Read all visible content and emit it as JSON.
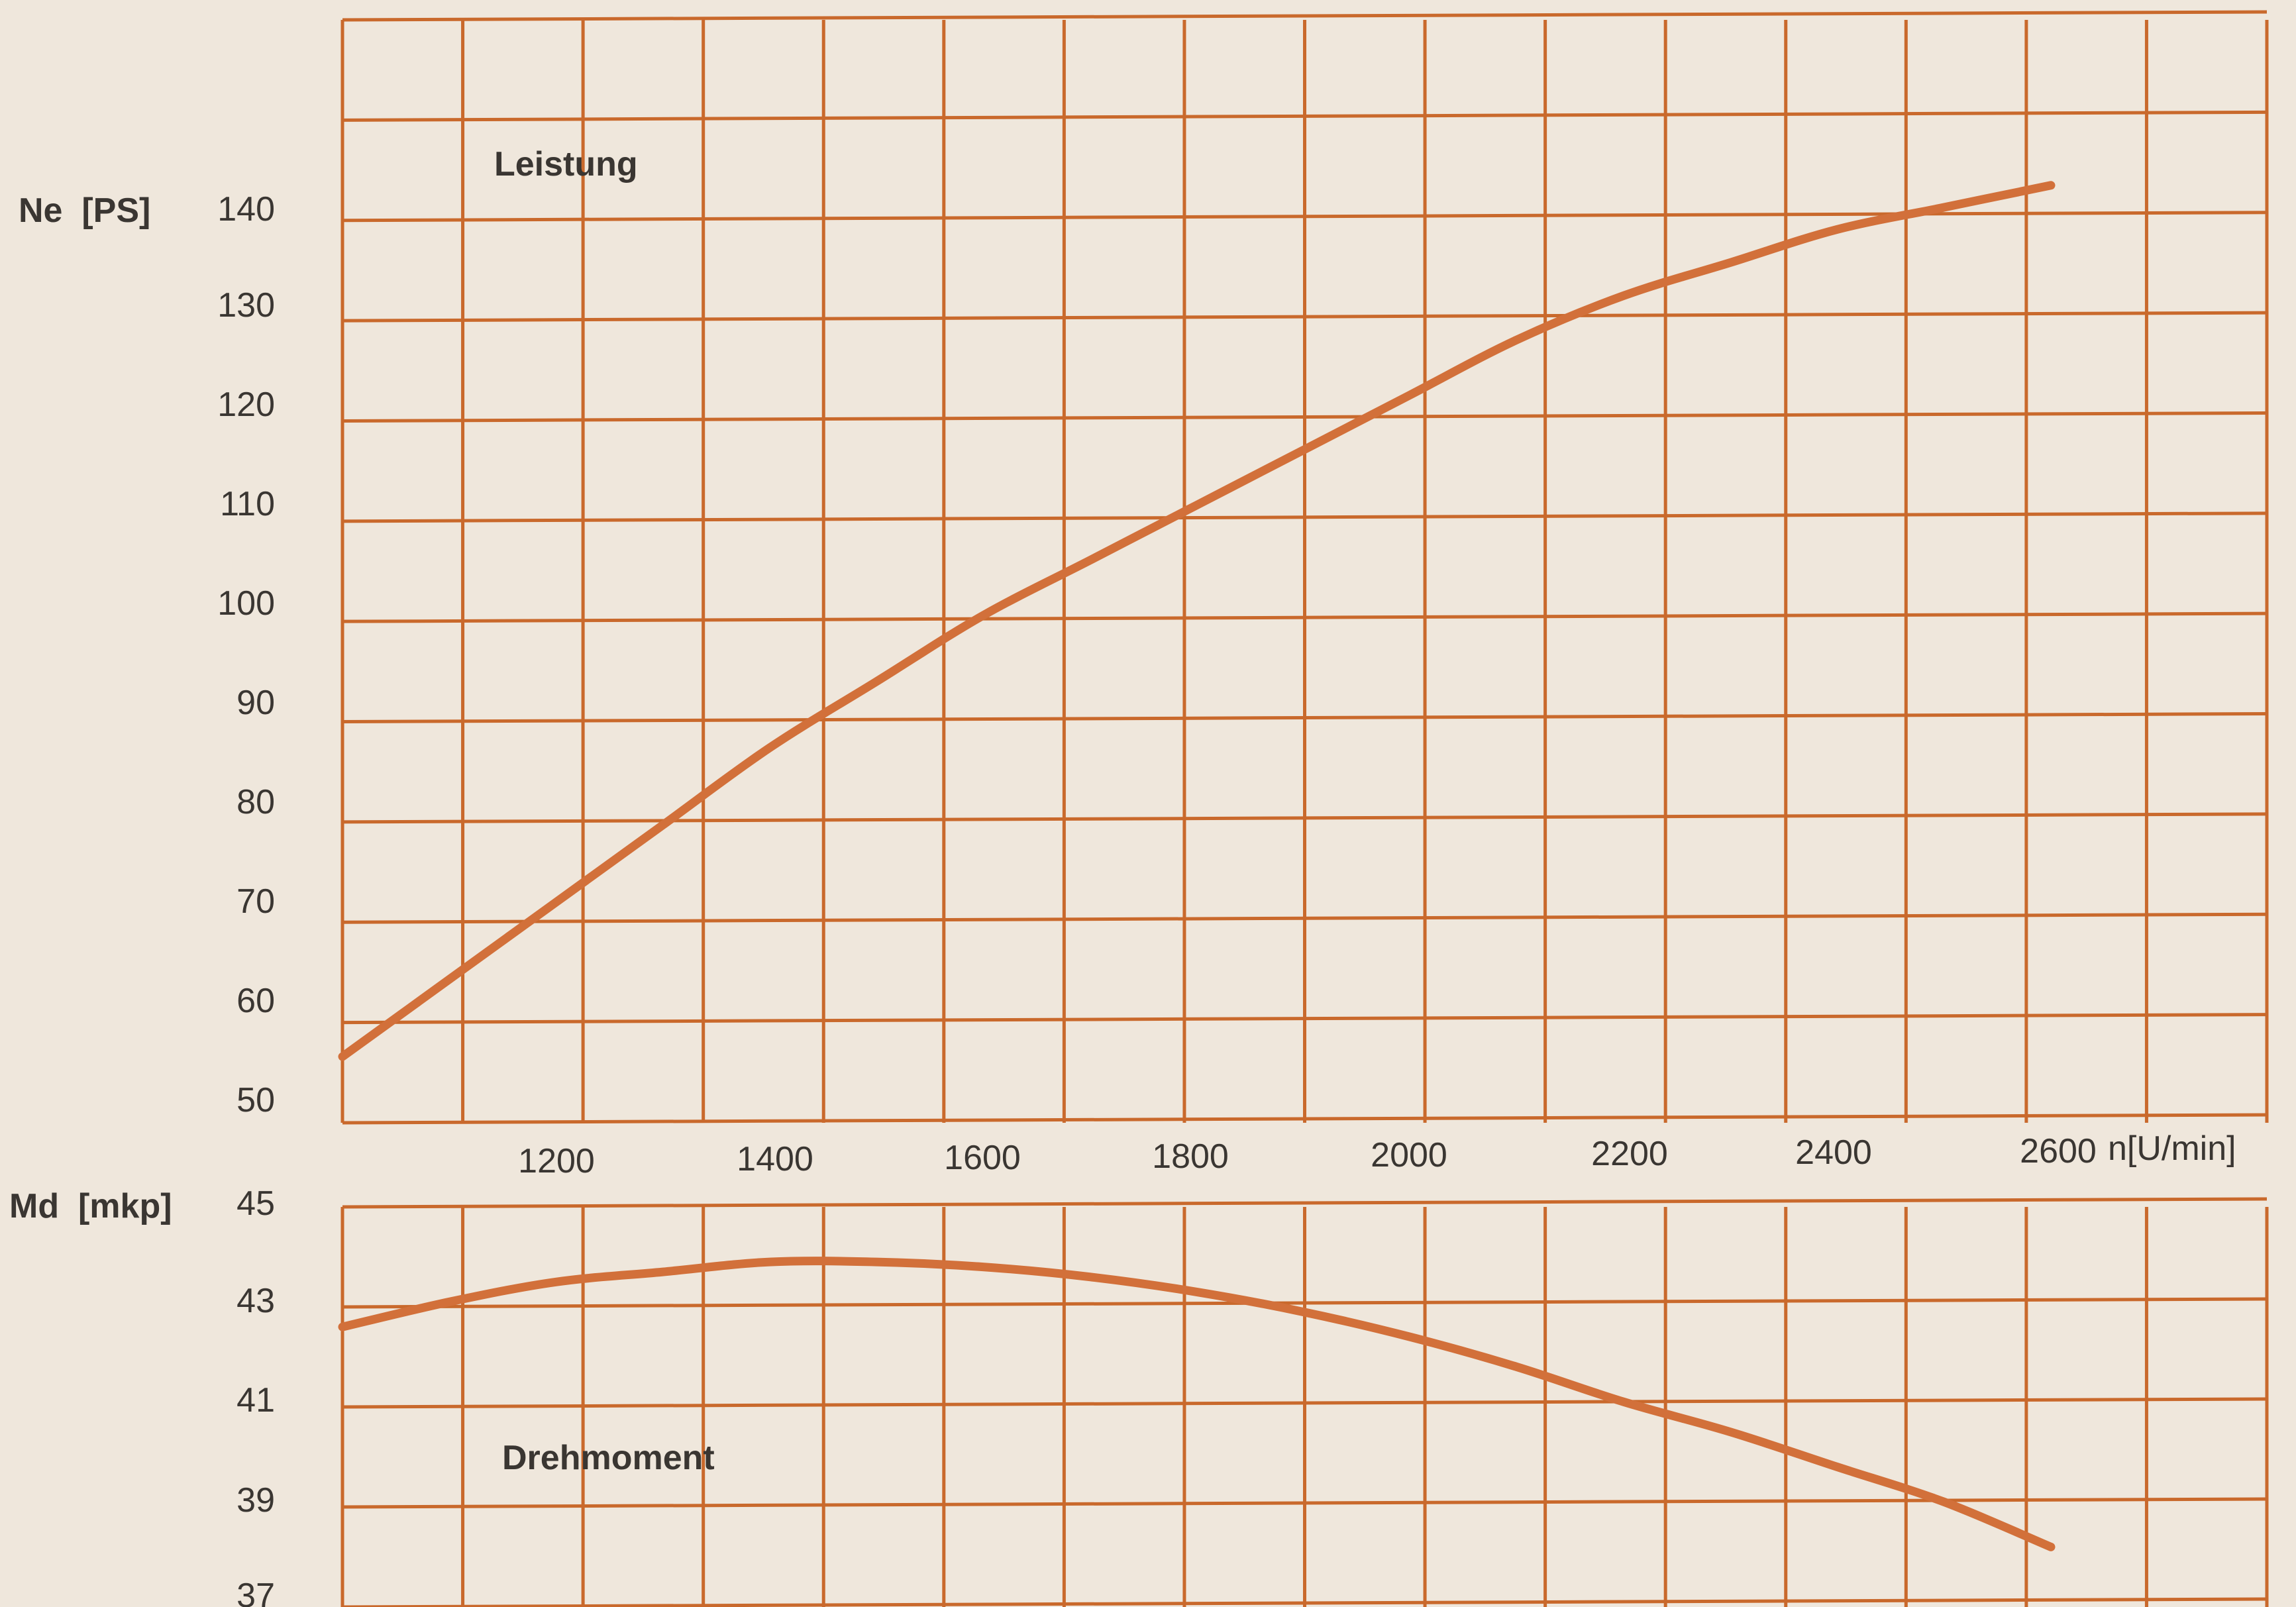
{
  "colors": {
    "background": "#efe7dc",
    "grid": "#c9692c",
    "curve": "#d2703a",
    "text": "#3a3632"
  },
  "chart_data": [
    {
      "type": "line",
      "ylabel": "Ne  [PS]",
      "xlabel": "n[U/min]",
      "xlim": [
        1000,
        2600
      ],
      "ylim": [
        50,
        150
      ],
      "grid": true,
      "x_ticks": [
        "1200",
        "1400",
        "1600",
        "1800",
        "2000",
        "2200",
        "2400",
        "2600"
      ],
      "y_ticks": [
        "50",
        "60",
        "70",
        "80",
        "90",
        "100",
        "110",
        "120",
        "130",
        "140"
      ],
      "series": [
        {
          "name": "Leistung",
          "x": [
            1000,
            1100,
            1200,
            1300,
            1400,
            1500,
            1600,
            1700,
            1800,
            1900,
            2000,
            2100,
            2200,
            2300,
            2400,
            2500,
            2600
          ],
          "values": [
            56,
            63,
            70,
            77,
            84,
            90,
            96,
            101,
            106,
            111,
            116,
            121,
            125,
            128,
            131,
            133,
            135
          ]
        }
      ]
    },
    {
      "type": "line",
      "ylabel": "Md  [mkp]",
      "xlim": [
        1000,
        2600
      ],
      "ylim": [
        37,
        45
      ],
      "grid": true,
      "y_ticks": [
        "37",
        "39",
        "41",
        "43",
        "45"
      ],
      "series": [
        {
          "name": "Drehmoment",
          "x": [
            1000,
            1100,
            1200,
            1300,
            1400,
            1500,
            1600,
            1700,
            1800,
            1900,
            2000,
            2100,
            2200,
            2300,
            2400,
            2500,
            2600
          ],
          "values": [
            42.6,
            43.1,
            43.5,
            43.7,
            43.9,
            43.9,
            43.8,
            43.6,
            43.3,
            42.9,
            42.4,
            41.8,
            41.1,
            40.5,
            39.8,
            39.1,
            38.2
          ]
        }
      ]
    }
  ]
}
